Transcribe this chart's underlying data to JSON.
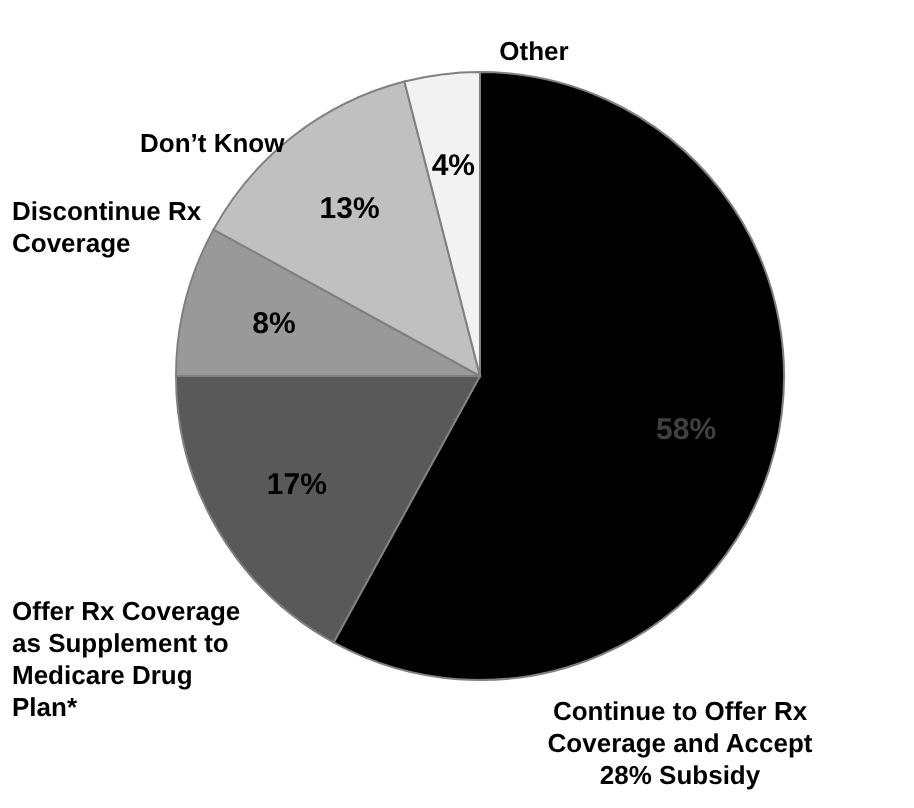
{
  "chart_data": {
    "type": "pie",
    "categories": [
      "Continue to Offer Rx\nCoverage and Accept\n28% Subsidy",
      "Offer Rx Coverage\nas Supplement to\nMedicare Drug\nPlan*",
      "Discontinue Rx\nCoverage",
      "Don’t Know",
      "Other"
    ],
    "values": [
      58,
      17,
      8,
      13,
      4
    ],
    "value_labels": [
      "58%",
      "17%",
      "8%",
      "13%",
      "4%"
    ],
    "colors": [
      "#000000",
      "#595959",
      "#999999",
      "#c0c0c0",
      "#f2f2f2"
    ]
  }
}
